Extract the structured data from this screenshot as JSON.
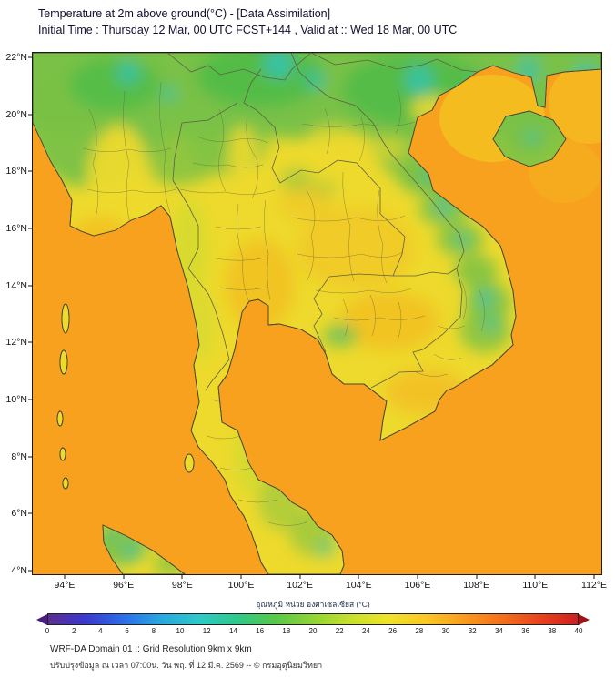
{
  "header": {
    "title": "Temperature at 2m above ground(°C) - [Data Assimilation]",
    "subtitle": "Initial Time : Thursday 12 Mar, 00 UTC FCST+144 , Valid at :: Wed 18 Mar, 00 UTC"
  },
  "map": {
    "lat_ticks": [
      "22°N",
      "20°N",
      "18°N",
      "16°N",
      "14°N",
      "12°N",
      "10°N",
      "8°N",
      "6°N",
      "4°N"
    ],
    "lon_ticks": [
      "94°E",
      "96°E",
      "98°E",
      "100°E",
      "102°E",
      "104°E",
      "106°E",
      "108°E",
      "110°E",
      "112°E"
    ],
    "palette": {
      "sea": "#f7a11e",
      "land": "#eeda2d",
      "green": "#79c146",
      "deep_green": "#49ba47",
      "teal": "#2fc3b7",
      "warm": "#f5ae1c",
      "ygreen": "#c4da30",
      "warm_sea": "#f4c522",
      "border": "#5f5f42",
      "coast": "#474736"
    }
  },
  "colorbar": {
    "label": "อุณหภูมิ หน่วย องศาเซลเซียส (°C)",
    "ticks": [
      "0",
      "2",
      "4",
      "6",
      "8",
      "10",
      "12",
      "14",
      "16",
      "18",
      "20",
      "22",
      "24",
      "26",
      "28",
      "30",
      "32",
      "34",
      "36",
      "38",
      "40"
    ],
    "stops": [
      "#5b2d8f",
      "#3a3ad0",
      "#2a6fe8",
      "#29a8e0",
      "#2ec9c9",
      "#2fc98a",
      "#57c948",
      "#8fd435",
      "#c8e02c",
      "#f0e32a",
      "#fbc724",
      "#f99b1e",
      "#f4701c",
      "#e8431c",
      "#cf2020"
    ],
    "left_arrow": "#4a1d7e",
    "right_arrow": "#9e1414"
  },
  "footer": {
    "line1": "WRF-DA Domain 01 :: Grid Resolution 9km x 9km",
    "line2": "ปรับปรุงข้อมูล ณ เวลา 07:00น. วัน พฤ. ที่ 12 มี.ค. 2569 -- © กรมอุตุนิยมวิทยา"
  }
}
